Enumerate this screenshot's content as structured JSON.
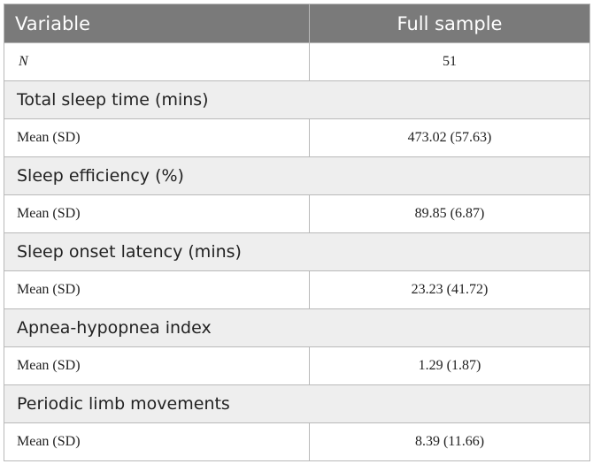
{
  "table": {
    "header": {
      "variable": "Variable",
      "full_sample": "Full sample"
    },
    "n_row": {
      "label": "N",
      "value": "51"
    },
    "sections": [
      {
        "title": "Total sleep time (mins)",
        "stat_label": "Mean (SD)",
        "value": "473.02 (57.63)"
      },
      {
        "title": "Sleep efficiency (%)",
        "stat_label": "Mean (SD)",
        "value": "89.85 (6.87)"
      },
      {
        "title": "Sleep onset latency (mins)",
        "stat_label": "Mean (SD)",
        "value": "23.23 (41.72)"
      },
      {
        "title": "Apnea-hypopnea index",
        "stat_label": "Mean (SD)",
        "value": "1.29 (1.87)"
      },
      {
        "title": "Periodic limb movements",
        "stat_label": "Mean (SD)",
        "value": "8.39 (11.66)"
      }
    ]
  }
}
